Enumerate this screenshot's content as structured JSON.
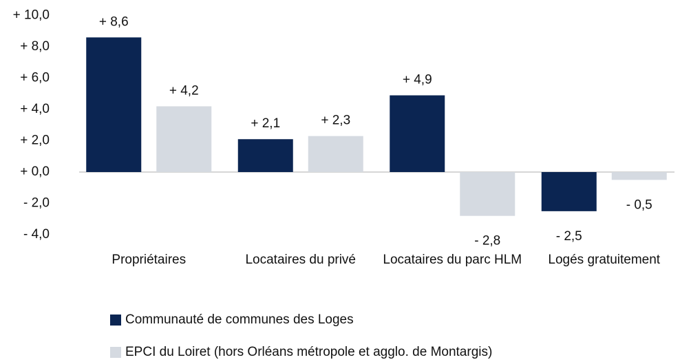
{
  "chart_data": {
    "type": "bar",
    "categories": [
      "Propriétaires",
      "Locataires du privé",
      "Locataires du parc HLM",
      "Logés gratuitement"
    ],
    "series": [
      {
        "name": "Communauté de communes des Loges",
        "color": "#0b2552",
        "values": [
          8.6,
          2.1,
          4.9,
          -2.5
        ],
        "value_labels": [
          "+ 8,6",
          "+ 2,1",
          "+ 4,9",
          "- 2,5"
        ]
      },
      {
        "name": "EPCI du Loiret (hors Orléans métropole et agglo. de Montargis)",
        "color": "#d5dae1",
        "values": [
          4.2,
          2.3,
          -2.8,
          -0.5
        ],
        "value_labels": [
          "+ 4,2",
          "+ 2,3",
          "- 2,8",
          "- 0,5"
        ]
      }
    ],
    "ylim": [
      -4,
      10
    ],
    "yticks": [
      {
        "value": -4,
        "label": "- 4,0"
      },
      {
        "value": -2,
        "label": "- 2,0"
      },
      {
        "value": 0,
        "label": "+ 0,0"
      },
      {
        "value": 2,
        "label": "+ 2,0"
      },
      {
        "value": 4,
        "label": "+ 4,0"
      },
      {
        "value": 6,
        "label": "+ 6,0"
      },
      {
        "value": 8,
        "label": "+ 8,0"
      },
      {
        "value": 10,
        "label": "+ 10,0"
      }
    ],
    "grid": false,
    "legend": "bottom"
  }
}
